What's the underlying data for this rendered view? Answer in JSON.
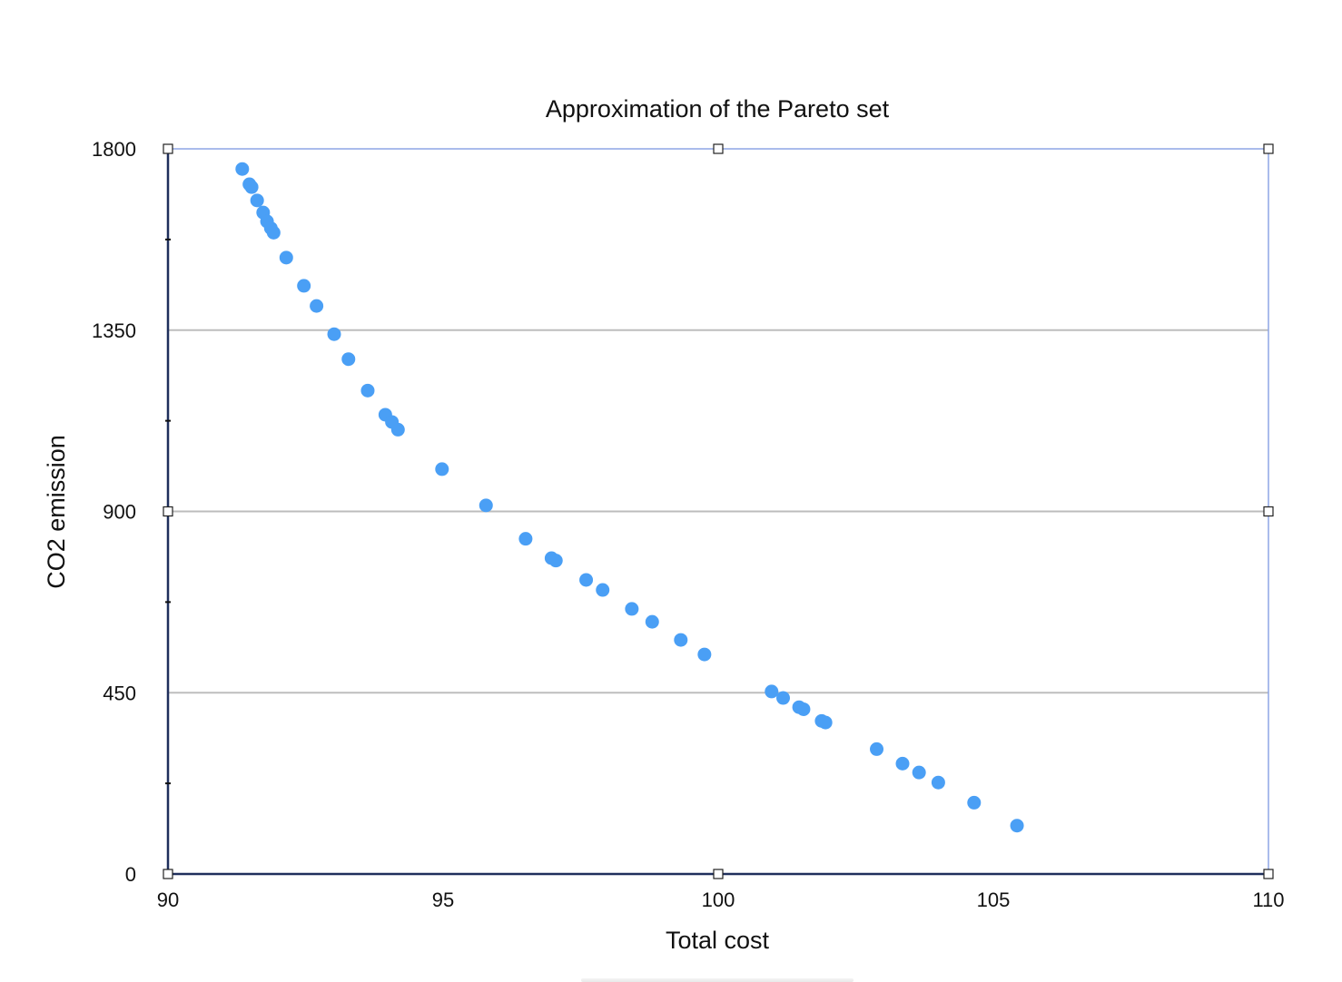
{
  "chart_data": {
    "type": "scatter",
    "title": "Approximation of the Pareto set",
    "xlabel": "Total cost",
    "ylabel": "CO2 emission",
    "xlim": [
      90,
      110
    ],
    "ylim": [
      0,
      1800
    ],
    "xticks": [
      90,
      95,
      100,
      105,
      110
    ],
    "yticks": [
      0,
      450,
      900,
      1350,
      1800
    ],
    "grid": "horizontal",
    "legend": "none",
    "colors": {
      "points": "#4a9ff5",
      "grid": "#bdbdbd",
      "axis": "#1f2f5c",
      "frame": "#8ea6e6"
    },
    "points": [
      {
        "x": 91.35,
        "y": 1750
      },
      {
        "x": 91.48,
        "y": 1712
      },
      {
        "x": 91.52,
        "y": 1705
      },
      {
        "x": 91.62,
        "y": 1672
      },
      {
        "x": 91.73,
        "y": 1642
      },
      {
        "x": 91.8,
        "y": 1620
      },
      {
        "x": 91.87,
        "y": 1603
      },
      {
        "x": 91.92,
        "y": 1592
      },
      {
        "x": 92.15,
        "y": 1530
      },
      {
        "x": 92.47,
        "y": 1460
      },
      {
        "x": 92.7,
        "y": 1410
      },
      {
        "x": 93.02,
        "y": 1340
      },
      {
        "x": 93.28,
        "y": 1278
      },
      {
        "x": 93.63,
        "y": 1200
      },
      {
        "x": 93.95,
        "y": 1140
      },
      {
        "x": 94.07,
        "y": 1122
      },
      {
        "x": 94.18,
        "y": 1103
      },
      {
        "x": 94.98,
        "y": 1005
      },
      {
        "x": 95.78,
        "y": 915
      },
      {
        "x": 96.5,
        "y": 832
      },
      {
        "x": 96.97,
        "y": 784
      },
      {
        "x": 97.05,
        "y": 778
      },
      {
        "x": 97.6,
        "y": 730
      },
      {
        "x": 97.9,
        "y": 705
      },
      {
        "x": 98.43,
        "y": 658
      },
      {
        "x": 98.8,
        "y": 626
      },
      {
        "x": 99.32,
        "y": 581
      },
      {
        "x": 99.75,
        "y": 545
      },
      {
        "x": 100.97,
        "y": 453
      },
      {
        "x": 101.18,
        "y": 437
      },
      {
        "x": 101.47,
        "y": 414
      },
      {
        "x": 101.55,
        "y": 409
      },
      {
        "x": 101.88,
        "y": 380
      },
      {
        "x": 101.95,
        "y": 376
      },
      {
        "x": 102.88,
        "y": 310
      },
      {
        "x": 103.35,
        "y": 274
      },
      {
        "x": 103.65,
        "y": 252
      },
      {
        "x": 104.0,
        "y": 227
      },
      {
        "x": 104.65,
        "y": 177
      },
      {
        "x": 105.43,
        "y": 120
      }
    ]
  }
}
